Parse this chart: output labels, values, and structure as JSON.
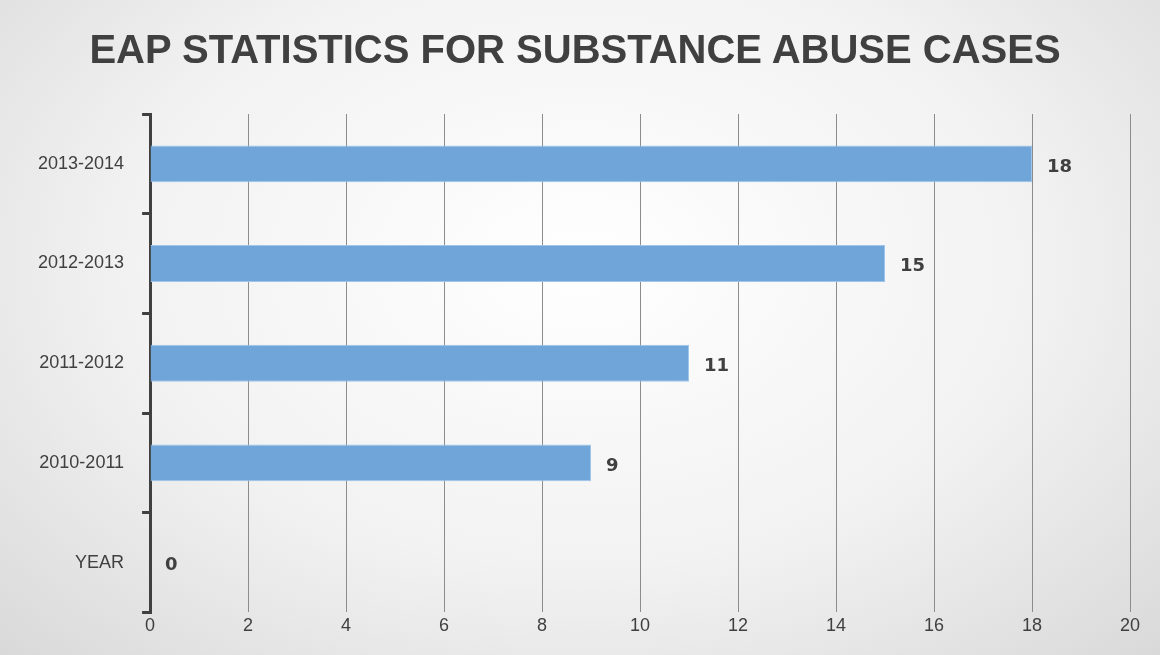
{
  "chart_data": {
    "type": "bar",
    "orientation": "horizontal",
    "title": "EAP STATISTICS FOR SUBSTANCE ABUSE CASES",
    "categories": [
      "2013-2014",
      "2012-2013",
      "2011-2012",
      "2010-2011",
      "YEAR"
    ],
    "values": [
      18,
      15,
      11,
      9,
      0
    ],
    "color": "#6fa5d8",
    "xlim": [
      0,
      20
    ],
    "xticks": [
      0,
      2,
      4,
      6,
      8,
      10,
      12,
      14,
      16,
      18,
      20
    ],
    "grid": "x",
    "legend": false,
    "data_labels": true
  }
}
